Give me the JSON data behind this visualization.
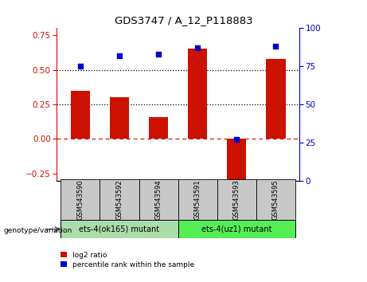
{
  "title": "GDS3747 / A_12_P118883",
  "samples": [
    "GSM543590",
    "GSM543592",
    "GSM543594",
    "GSM543591",
    "GSM543593",
    "GSM543595"
  ],
  "log2_ratio": [
    0.35,
    0.3,
    0.16,
    0.65,
    -0.3,
    0.58
  ],
  "percentile_rank": [
    75,
    82,
    83,
    87,
    27,
    88
  ],
  "bar_color": "#cc1100",
  "dot_color": "#0000cc",
  "group1_label": "ets-4(ok165) mutant",
  "group2_label": "ets-4(uz1) mutant",
  "group1_indices": [
    0,
    1,
    2
  ],
  "group2_indices": [
    3,
    4,
    5
  ],
  "group1_color": "#aaddaa",
  "group2_color": "#55ee55",
  "ylim_left": [
    -0.3,
    0.8
  ],
  "ylim_right": [
    0,
    100
  ],
  "yticks_left": [
    -0.25,
    0.0,
    0.25,
    0.5,
    0.75
  ],
  "yticks_right": [
    0,
    25,
    50,
    75,
    100
  ],
  "hlines": [
    0.0,
    0.25,
    0.5
  ],
  "hline_styles": [
    "dashdot",
    "dotted",
    "dotted"
  ],
  "hline_colors": [
    "#cc2200",
    "#000000",
    "#000000"
  ],
  "ylabel_left_color": "#cc1100",
  "ylabel_right_color": "#0000cc",
  "legend_labels": [
    "log2 ratio",
    "percentile rank within the sample"
  ],
  "genotype_label": "genotype/variation"
}
